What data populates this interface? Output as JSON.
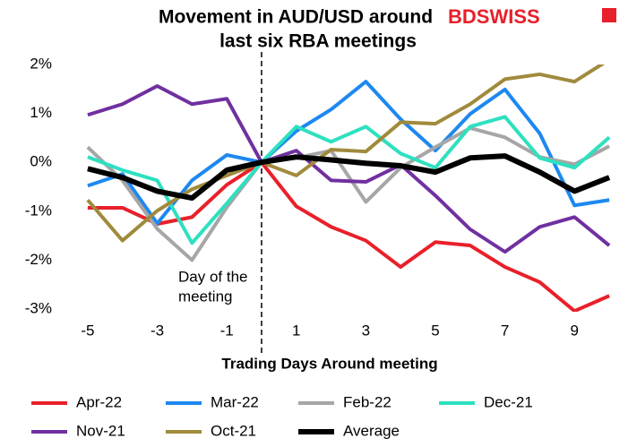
{
  "chart_data": {
    "type": "line",
    "title": [
      "Movement in AUD/USD around",
      "last six RBA meetings"
    ],
    "logo": "BDSWISS",
    "annotation": [
      "Day of the",
      "meeting"
    ],
    "x_label": "Trading Days Around meeting",
    "vline": 0,
    "x": [
      -5,
      -4,
      -3,
      -2,
      -1,
      0,
      1,
      2,
      3,
      4,
      5,
      6,
      7,
      8,
      9,
      10
    ],
    "xlim": [
      -5.5,
      10.5
    ],
    "xticks": [
      -5,
      -3,
      -1,
      1,
      3,
      5,
      7,
      9
    ],
    "ylim": [
      -3,
      2
    ],
    "yticks": [
      {
        "value": 2,
        "label": "2%"
      },
      {
        "value": 1,
        "label": "1%"
      },
      {
        "value": 0,
        "label": "0%"
      },
      {
        "value": -1,
        "label": "-1%"
      },
      {
        "value": -2,
        "label": "-2%"
      },
      {
        "value": -3,
        "label": "-3%"
      }
    ],
    "series": [
      {
        "name": "Apr-22",
        "color": "#e8202a",
        "values": [
          -0.93,
          -0.93,
          -1.26,
          -1.12,
          -0.46,
          0,
          -0.9,
          -1.32,
          -1.6,
          -2.14,
          -1.63,
          -1.7,
          -2.14,
          -2.45,
          -3.04,
          -2.73
        ]
      },
      {
        "name": "Mar-22",
        "color": "#1e88f0",
        "values": [
          -0.48,
          -0.24,
          -1.25,
          -0.37,
          0.15,
          0,
          0.64,
          1.08,
          1.65,
          0.88,
          0.24,
          0.99,
          1.49,
          0.59,
          -0.88,
          -0.77
        ]
      },
      {
        "name": "Feb-22",
        "color": "#a6a6a6",
        "values": [
          0.31,
          -0.37,
          -1.36,
          -2.0,
          -0.92,
          0,
          0.09,
          0.24,
          -0.81,
          -0.11,
          0.31,
          0.7,
          0.51,
          0.11,
          -0.04,
          0.33
        ]
      },
      {
        "name": "Dec-21",
        "color": "#2de0c0",
        "values": [
          0.11,
          -0.16,
          -0.37,
          -1.65,
          -0.84,
          0,
          0.73,
          0.42,
          0.73,
          0.18,
          -0.11,
          0.73,
          0.93,
          0.09,
          -0.11,
          0.51
        ]
      },
      {
        "name": "Nov-21",
        "color": "#7030a0",
        "values": [
          0.97,
          1.19,
          1.56,
          1.19,
          1.3,
          0,
          0.24,
          -0.37,
          -0.4,
          -0.05,
          -0.68,
          -1.37,
          -1.83,
          -1.32,
          -1.12,
          -1.7
        ]
      },
      {
        "name": "Oct-21",
        "color": "#a08a3c",
        "values": [
          -0.77,
          -1.6,
          -0.99,
          -0.55,
          -0.27,
          0,
          -0.27,
          0.26,
          0.22,
          0.82,
          0.79,
          1.19,
          1.7,
          1.8,
          1.65,
          2.1
        ]
      },
      {
        "name": "Average",
        "color": "#000000",
        "values": [
          -0.13,
          -0.31,
          -0.59,
          -0.73,
          -0.16,
          0,
          0.11,
          0.05,
          -0.02,
          -0.07,
          -0.2,
          0.09,
          0.13,
          -0.2,
          -0.59,
          -0.31
        ]
      }
    ]
  }
}
